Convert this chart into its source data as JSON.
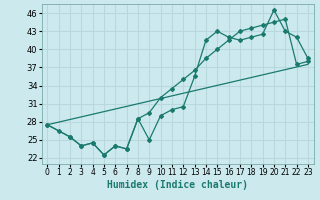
{
  "xlabel": "Humidex (Indice chaleur)",
  "bg_color": "#cce9ee",
  "grid_color": "#b8d8de",
  "line_color": "#1a7a6e",
  "xlim": [
    -0.5,
    23.5
  ],
  "ylim": [
    21.0,
    47.5
  ],
  "yticks": [
    22,
    25,
    28,
    31,
    34,
    37,
    40,
    43,
    46
  ],
  "xticks": [
    0,
    1,
    2,
    3,
    4,
    5,
    6,
    7,
    8,
    9,
    10,
    11,
    12,
    13,
    14,
    15,
    16,
    17,
    18,
    19,
    20,
    21,
    22,
    23
  ],
  "series1_x": [
    0,
    1,
    2,
    3,
    4,
    5,
    6,
    7,
    8,
    9,
    10,
    11,
    12,
    13,
    14,
    15,
    16,
    17,
    18,
    19,
    20,
    21,
    22,
    23
  ],
  "series1_y": [
    27.5,
    26.5,
    25.5,
    24.0,
    24.5,
    22.5,
    24.0,
    23.5,
    28.5,
    25.0,
    29.0,
    30.0,
    30.5,
    35.5,
    41.5,
    43.0,
    42.0,
    41.5,
    42.0,
    42.5,
    46.5,
    43.0,
    42.0,
    38.5
  ],
  "series2_x": [
    0,
    2,
    3,
    4,
    5,
    6,
    7,
    8,
    9,
    10,
    11,
    12,
    13,
    14,
    15,
    16,
    17,
    18,
    19,
    20,
    21,
    22,
    23
  ],
  "series2_y": [
    27.5,
    25.5,
    24.0,
    24.5,
    22.5,
    24.0,
    23.5,
    28.5,
    29.5,
    32.0,
    33.5,
    35.0,
    36.5,
    38.5,
    40.0,
    41.5,
    43.0,
    43.5,
    44.0,
    44.5,
    45.0,
    37.5,
    38.0
  ],
  "series3_x": [
    0,
    23
  ],
  "series3_y": [
    27.5,
    37.5
  ]
}
